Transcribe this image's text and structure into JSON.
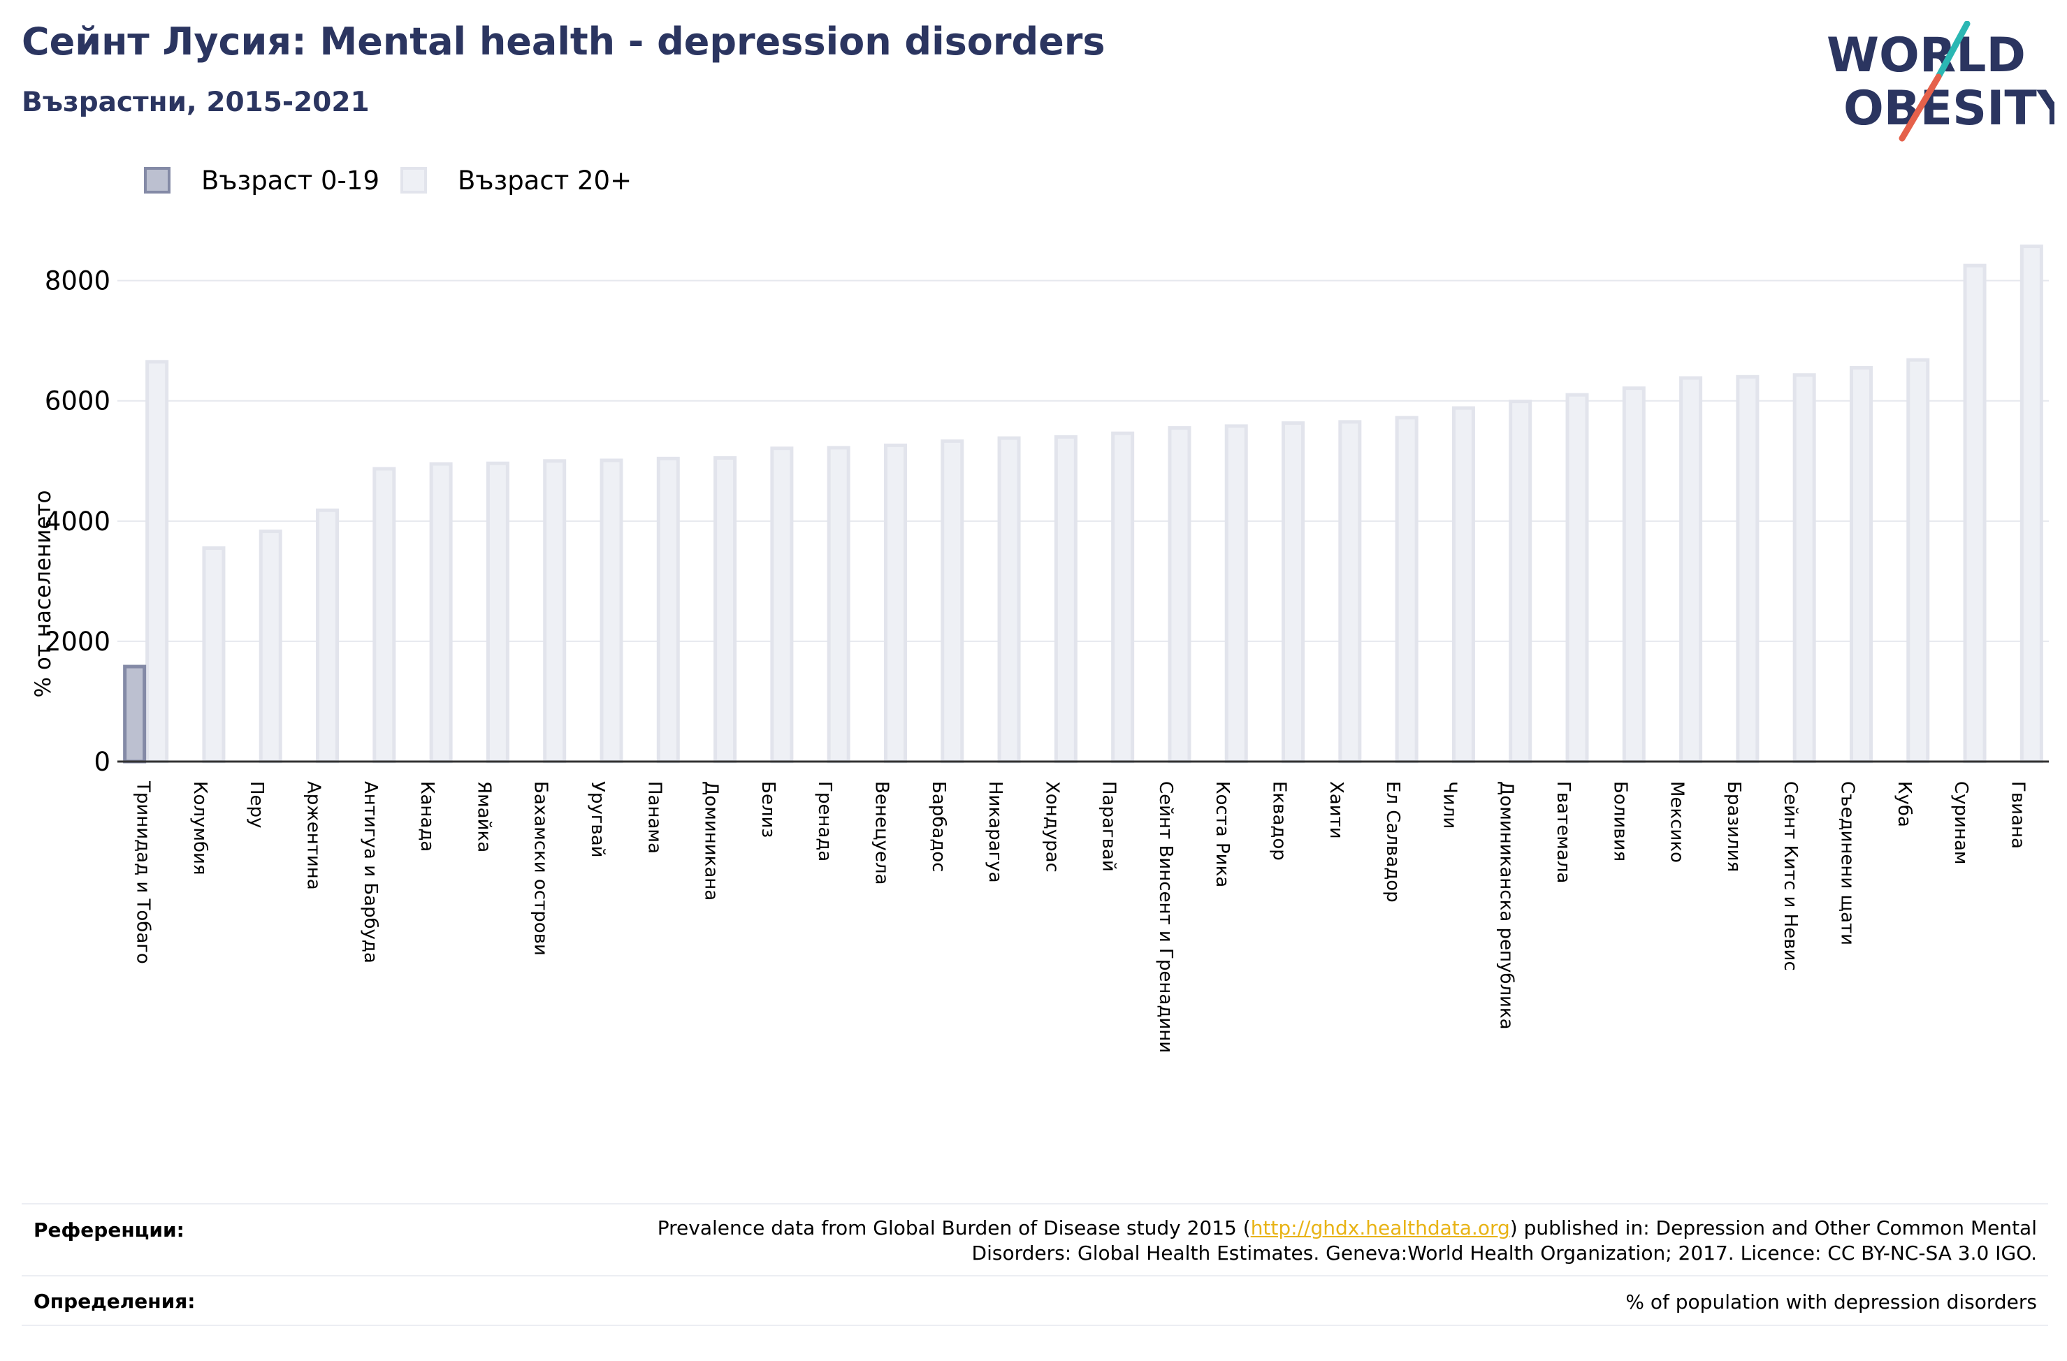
{
  "header": {
    "title": "Сейнт Лусия: Mental health - depression disorders",
    "subtitle": "Възрастни, 2015-2021"
  },
  "logo": {
    "line1": "WORLD",
    "line2": "OBESITY"
  },
  "colors": {
    "title": "#2b3560",
    "young_fill": "#bcc0d0",
    "young_stroke": "#848aa6",
    "adult_fill": "#eef0f5",
    "adult_stroke": "#e2e4ec",
    "link": "#e8b315",
    "logo_teal": "#2bb7b3",
    "logo_red": "#e5614b"
  },
  "legend": [
    {
      "label": "Възраст 0-19",
      "series": "young"
    },
    {
      "label": "Възраст 20+",
      "series": "adult"
    }
  ],
  "chart_data": {
    "type": "bar",
    "ylabel": "% от населението",
    "ylim": [
      0,
      8600
    ],
    "yticks": [
      0,
      2000,
      4000,
      6000,
      8000
    ],
    "grid": true,
    "categories": [
      "Тринидад и Тобаго",
      "Колумбия",
      "Перу",
      "Аржентина",
      "Антигуа и Барбуда",
      "Канада",
      "Ямайка",
      "Бахамски острови",
      "Уругвай",
      "Панама",
      "Доминикана",
      "Белиз",
      "Гренада",
      "Венецуела",
      "Барбадос",
      "Никарагуа",
      "Хондурас",
      "Парагвай",
      "Сейнт Винсент и Гренадини",
      "Коста Рика",
      "Еквадор",
      "Хаити",
      "Ел Салвадор",
      "Чили",
      "Доминиканска република",
      "Гватемала",
      "Боливия",
      "Мексико",
      "Бразилия",
      "Сейнт Китс и Невис",
      "Съединени щати",
      "Куба",
      "Суринам",
      "Гвиана"
    ],
    "series": [
      {
        "name": "Възраст 0-19",
        "values": [
          1580,
          0,
          0,
          0,
          0,
          0,
          0,
          0,
          0,
          0,
          0,
          0,
          0,
          0,
          0,
          0,
          0,
          0,
          0,
          0,
          0,
          0,
          0,
          0,
          0,
          0,
          0,
          0,
          0,
          0,
          0,
          0,
          0,
          0
        ]
      },
      {
        "name": "Възраст 20+",
        "values": [
          6650,
          3550,
          3830,
          4180,
          4870,
          4950,
          4960,
          5000,
          5010,
          5040,
          5050,
          5210,
          5220,
          5260,
          5330,
          5380,
          5400,
          5460,
          5550,
          5580,
          5630,
          5650,
          5720,
          5880,
          5990,
          6100,
          6210,
          6380,
          6400,
          6430,
          6550,
          6680,
          8250,
          8570
        ]
      }
    ]
  },
  "footer": {
    "references_label": "Референции:",
    "references_pre": "Prevalence data from Global Burden of Disease study 2015 (",
    "references_link": "http://ghdx.healthdata.org",
    "references_post": ") published in: Depression and Other Common Mental",
    "references_line2": "Disorders: Global Health Estimates. Geneva:World Health Organization; 2017. Licence: CC BY-NC-SA 3.0 IGO.",
    "definitions_label": "Определения:",
    "definitions_text": "% of population with depression disorders"
  }
}
